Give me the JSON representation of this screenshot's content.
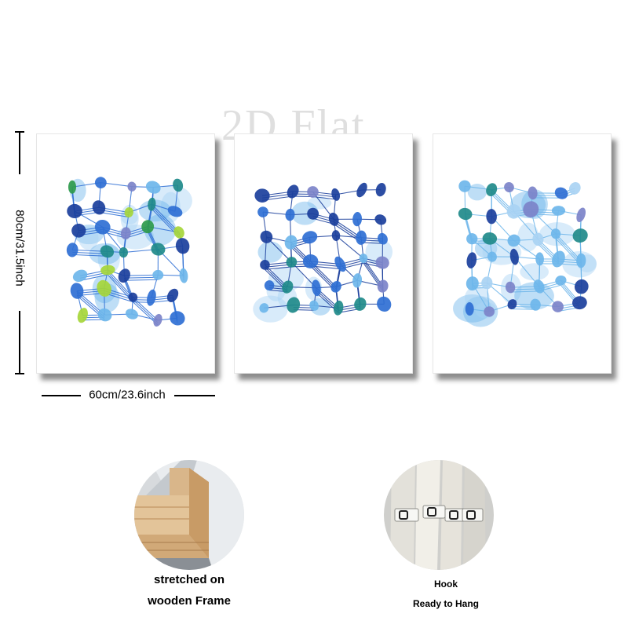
{
  "watermark": "2D Flat",
  "dimensions": {
    "height_label": "80cm/31.5inch",
    "width_label": "60cm/23.6inch"
  },
  "panels": [
    {
      "name": "canvas-panel-left",
      "artwork": "abstract blue and green connected shapes"
    },
    {
      "name": "canvas-panel-center",
      "artwork": "abstract blue connected shapes grid"
    },
    {
      "name": "canvas-panel-right",
      "artwork": "abstract light blue connected shapes"
    }
  ],
  "details": {
    "frame": {
      "caption_line1": "stretched on",
      "caption_line2": "wooden Frame"
    },
    "hook": {
      "caption_line1": "Hook",
      "caption_line2": "Ready to Hang"
    }
  },
  "palette": {
    "navy": "#1b3f9c",
    "royal": "#2f6fd4",
    "sky": "#6eb6ea",
    "pale": "#a9d3f3",
    "teal": "#1f8a8a",
    "green": "#2e9a4c",
    "lime": "#a6d63a",
    "violet": "#7c83c9",
    "wood": "#d8b58a"
  }
}
